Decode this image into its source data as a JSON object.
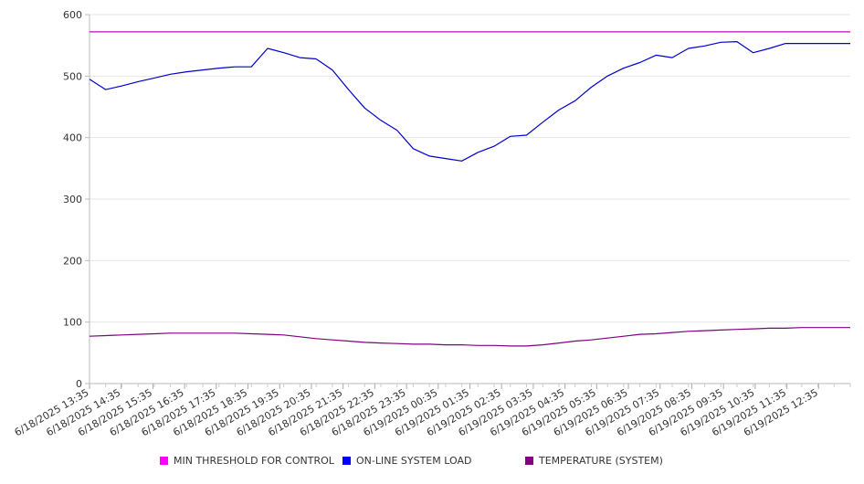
{
  "chart_data": {
    "type": "line",
    "ylim": [
      0,
      600
    ],
    "y_ticks": [
      0,
      100,
      200,
      300,
      400,
      500,
      600
    ],
    "grid": true,
    "legend_position": "bottom",
    "x_tick_labels": [
      "6/18/2025 13:35",
      "6/18/2025 14:35",
      "6/18/2025 15:35",
      "6/18/2025 16:35",
      "6/18/2025 17:35",
      "6/18/2025 18:35",
      "6/18/2025 19:35",
      "6/18/2025 20:35",
      "6/18/2025 21:35",
      "6/18/2025 22:35",
      "6/18/2025 23:35",
      "6/19/2025 00:35",
      "6/19/2025 01:35",
      "6/19/2025 02:35",
      "6/19/2025 03:35",
      "6/19/2025 04:35",
      "6/19/2025 05:35",
      "6/19/2025 06:35",
      "6/19/2025 07:35",
      "6/19/2025 08:35",
      "6/19/2025 09:35",
      "6/19/2025 10:35",
      "6/19/2025 11:35",
      "6/19/2025 12:35"
    ],
    "x_values": [
      "6/18/2025 13:35",
      "6/18/2025 14:05",
      "6/18/2025 14:35",
      "6/18/2025 15:05",
      "6/18/2025 15:35",
      "6/18/2025 16:05",
      "6/18/2025 16:35",
      "6/18/2025 17:05",
      "6/18/2025 17:35",
      "6/18/2025 18:05",
      "6/18/2025 18:35",
      "6/18/2025 19:05",
      "6/18/2025 19:35",
      "6/18/2025 20:05",
      "6/18/2025 20:35",
      "6/18/2025 21:05",
      "6/18/2025 21:35",
      "6/18/2025 22:05",
      "6/18/2025 22:35",
      "6/18/2025 23:05",
      "6/18/2025 23:35",
      "6/19/2025 00:05",
      "6/19/2025 00:35",
      "6/19/2025 01:05",
      "6/19/2025 01:35",
      "6/19/2025 02:05",
      "6/19/2025 02:35",
      "6/19/2025 03:05",
      "6/19/2025 03:35",
      "6/19/2025 04:05",
      "6/19/2025 04:35",
      "6/19/2025 05:05",
      "6/19/2025 05:35",
      "6/19/2025 06:05",
      "6/19/2025 06:35",
      "6/19/2025 07:05",
      "6/19/2025 07:35",
      "6/19/2025 08:05",
      "6/19/2025 08:35",
      "6/19/2025 09:05",
      "6/19/2025 09:35",
      "6/19/2025 10:05",
      "6/19/2025 10:35",
      "6/19/2025 11:05",
      "6/19/2025 11:35",
      "6/19/2025 12:05",
      "6/19/2025 12:35",
      "6/19/2025 13:05"
    ],
    "series": [
      {
        "name": "MIN THRESHOLD FOR CONTROL",
        "color": "#cc00cc",
        "legend_color": "#ff00ff",
        "values": [
          572,
          572,
          572,
          572,
          572,
          572,
          572,
          572,
          572,
          572,
          572,
          572,
          572,
          572,
          572,
          572,
          572,
          572,
          572,
          572,
          572,
          572,
          572,
          572,
          572,
          572,
          572,
          572,
          572,
          572,
          572,
          572,
          572,
          572,
          572,
          572,
          572,
          572,
          572,
          572,
          572,
          572,
          572,
          572,
          572,
          572,
          572,
          572
        ]
      },
      {
        "name": "ON-LINE SYSTEM LOAD",
        "color": "#0000cc",
        "legend_color": "#0000ff",
        "values": [
          495,
          478,
          484,
          491,
          497,
          503,
          507,
          510,
          513,
          515,
          515,
          545,
          538,
          530,
          528,
          510,
          478,
          448,
          428,
          412,
          382,
          370,
          366,
          362,
          376,
          386,
          402,
          404,
          425,
          445,
          460,
          482,
          500,
          513,
          522,
          534,
          530,
          545,
          549,
          555,
          556,
          538,
          545,
          553,
          553,
          553,
          553,
          553
        ]
      },
      {
        "name": "TEMPERATURE (SYSTEM)",
        "color": "#800080",
        "legend_color": "#800080",
        "values": [
          77,
          78,
          79,
          80,
          81,
          82,
          82,
          82,
          82,
          82,
          81,
          80,
          79,
          76,
          73,
          71,
          69,
          67,
          66,
          65,
          64,
          64,
          63,
          63,
          62,
          62,
          61,
          61,
          63,
          66,
          69,
          71,
          74,
          77,
          80,
          81,
          83,
          85,
          86,
          87,
          88,
          89,
          90,
          90,
          91,
          91,
          91,
          91
        ]
      }
    ]
  }
}
